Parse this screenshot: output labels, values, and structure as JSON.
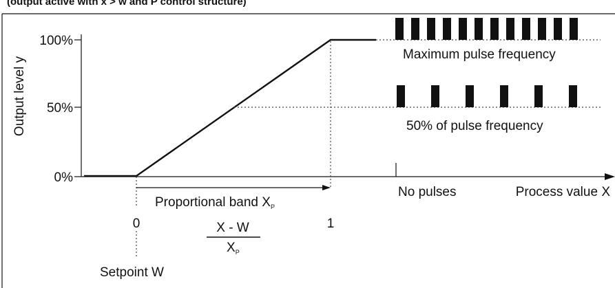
{
  "header": {
    "text": "(output active with x > w and P control structure)"
  },
  "y_axis": {
    "label": "Output level y",
    "ticks": [
      "100%",
      "50%",
      "0%"
    ]
  },
  "x_axis": {
    "label": "Process value X",
    "tick_start": "0",
    "tick_end": "1"
  },
  "annotations": {
    "proportional_band": "Proportional band X",
    "proportional_band_sub": "P",
    "fraction_numerator": "X - W",
    "fraction_denominator": "X",
    "fraction_denominator_sub": "P",
    "setpoint": "Setpoint W",
    "max_pulse": "Maximum pulse frequency",
    "half_pulse": "50% of pulse frequency",
    "no_pulses": "No pulses"
  },
  "pulse_levels": [
    {
      "label": "Maximum pulse frequency",
      "output_percent": 100,
      "relative_frequency": 1.0
    },
    {
      "label": "50% of pulse frequency",
      "output_percent": 50,
      "relative_frequency": 0.5
    },
    {
      "label": "No pulses",
      "output_percent": 0,
      "relative_frequency": 0.0
    }
  ],
  "colors": {
    "line": "#111111",
    "dotted": "#444444",
    "pulse": "#111111"
  }
}
